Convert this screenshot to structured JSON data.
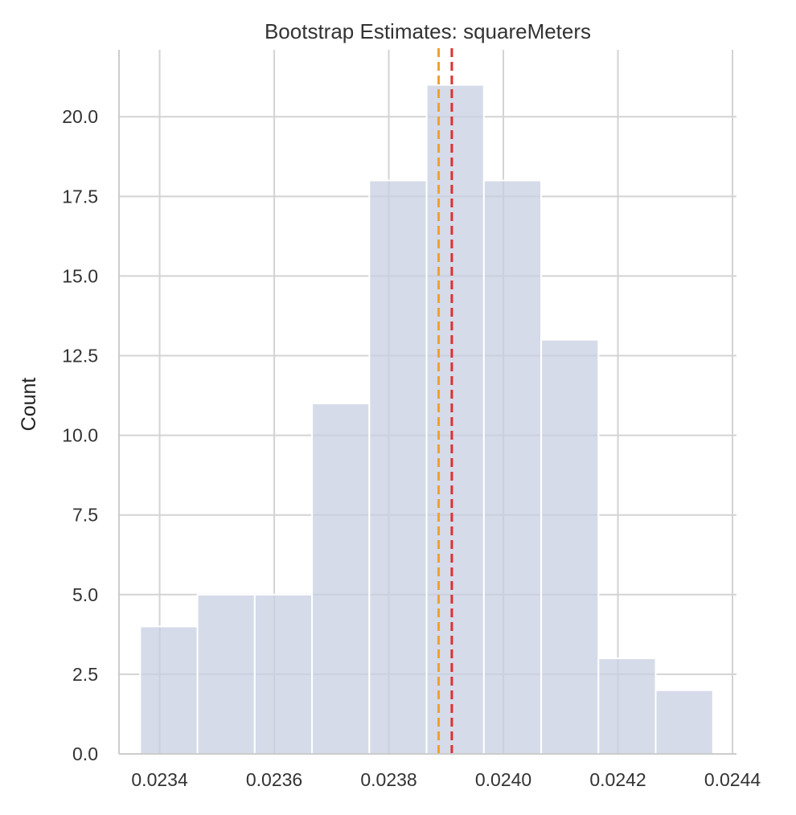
{
  "chart_data": {
    "type": "bar",
    "title": "Bootstrap Estimates: squareMeters",
    "xlabel": "",
    "ylabel": "Count",
    "xlim": [
      0.023329,
      0.024407
    ],
    "ylim": [
      0,
      22.1
    ],
    "x_ticks": [
      0.0234,
      0.0236,
      0.0238,
      0.024,
      0.0242,
      0.0244
    ],
    "x_tick_labels": [
      "0.0234",
      "0.0236",
      "0.0238",
      "0.0240",
      "0.0242",
      "0.0244"
    ],
    "y_ticks": [
      0.0,
      2.5,
      5.0,
      7.5,
      10.0,
      12.5,
      15.0,
      17.5,
      20.0
    ],
    "y_tick_labels": [
      "0.0",
      "2.5",
      "5.0",
      "7.5",
      "10.0",
      "12.5",
      "15.0",
      "17.5",
      "20.0"
    ],
    "grid": true,
    "bin_edges": [
      0.023366,
      0.023466,
      0.023566,
      0.023666,
      0.023766,
      0.023866,
      0.023966,
      0.024066,
      0.024166,
      0.024266,
      0.024366
    ],
    "counts": [
      4,
      5,
      5,
      11,
      18,
      21,
      18,
      13,
      3,
      2
    ],
    "vlines": [
      {
        "x": 0.023887,
        "color": "#f0a030",
        "style": "dashed"
      },
      {
        "x": 0.02391,
        "color": "#e03030",
        "style": "dashed"
      }
    ],
    "colors": {
      "bar_fill": "#c7cfe1",
      "bar_stroke": "#ffffff",
      "grid": "#d3d3d3",
      "axis": "#cccccc"
    }
  }
}
